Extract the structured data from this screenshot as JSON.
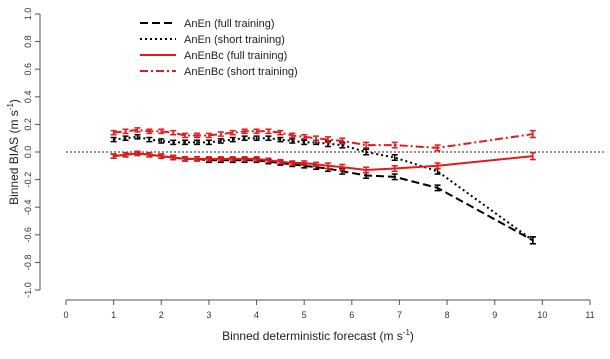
{
  "chart_data": {
    "type": "line",
    "title": "",
    "xlabel": "Binned deterministic forecast (m s",
    "xlabel_sup": "-1",
    "xlabel_tail": ")",
    "ylabel": "Binned BIAS (m s",
    "ylabel_sup": "-1",
    "ylabel_tail": ")",
    "xlim": [
      0,
      11
    ],
    "ylim": [
      -1.0,
      1.0
    ],
    "xticks": [
      0,
      1,
      2,
      3,
      4,
      5,
      6,
      7,
      8,
      9,
      10,
      11
    ],
    "xtick_labels": [
      "0",
      "1",
      "2",
      "3",
      "4",
      "5",
      "6",
      "7",
      "8",
      "9",
      "10",
      "11"
    ],
    "yticks": [
      -1.0,
      -0.8,
      -0.6,
      -0.4,
      -0.2,
      0.0,
      0.2,
      0.4,
      0.6,
      0.8,
      1.0
    ],
    "ytick_labels": [
      "-1.0",
      "-0.8",
      "-0.6",
      "-0.4",
      "-0.2",
      "0.0",
      "0.2",
      "0.4",
      "0.6",
      "0.8",
      "1.0"
    ],
    "reference_line": 0.0,
    "grid": false,
    "legend_position": "top-left",
    "x": [
      1.0,
      1.25,
      1.5,
      1.75,
      2.0,
      2.25,
      2.5,
      2.75,
      3.0,
      3.25,
      3.5,
      3.75,
      4.0,
      4.25,
      4.5,
      4.75,
      5.0,
      5.25,
      5.5,
      5.8,
      6.3,
      6.9,
      7.8,
      9.8
    ],
    "series": [
      {
        "name": "AnEn (full training)",
        "color": "#000000",
        "style": "dashed",
        "values": [
          -0.03,
          -0.02,
          -0.01,
          -0.02,
          -0.03,
          -0.04,
          -0.05,
          -0.05,
          -0.06,
          -0.06,
          -0.06,
          -0.06,
          -0.06,
          -0.07,
          -0.08,
          -0.09,
          -0.1,
          -0.11,
          -0.12,
          -0.14,
          -0.17,
          -0.18,
          -0.26,
          -0.64
        ],
        "errors": [
          0.015,
          0.015,
          0.015,
          0.015,
          0.015,
          0.015,
          0.015,
          0.015,
          0.015,
          0.015,
          0.015,
          0.015,
          0.015,
          0.015,
          0.015,
          0.015,
          0.015,
          0.015,
          0.02,
          0.02,
          0.02,
          0.02,
          0.02,
          0.025
        ]
      },
      {
        "name": "AnEn (short training)",
        "color": "#000000",
        "style": "dotted",
        "values": [
          0.09,
          0.1,
          0.11,
          0.09,
          0.08,
          0.07,
          0.07,
          0.07,
          0.07,
          0.08,
          0.09,
          0.1,
          0.1,
          0.1,
          0.09,
          0.08,
          0.07,
          0.07,
          0.06,
          0.05,
          0.0,
          -0.04,
          -0.14,
          -0.64
        ],
        "errors": [
          0.015,
          0.015,
          0.015,
          0.015,
          0.015,
          0.015,
          0.015,
          0.015,
          0.015,
          0.015,
          0.015,
          0.015,
          0.015,
          0.015,
          0.015,
          0.015,
          0.015,
          0.015,
          0.02,
          0.02,
          0.02,
          0.02,
          0.02,
          0.025
        ]
      },
      {
        "name": "AnEnBc (full training)",
        "color": "#e31a1c",
        "style": "solid",
        "values": [
          -0.03,
          -0.02,
          -0.01,
          -0.02,
          -0.03,
          -0.04,
          -0.05,
          -0.05,
          -0.05,
          -0.05,
          -0.05,
          -0.05,
          -0.05,
          -0.06,
          -0.07,
          -0.08,
          -0.08,
          -0.09,
          -0.1,
          -0.11,
          -0.13,
          -0.12,
          -0.1,
          -0.03
        ],
        "errors": [
          0.015,
          0.015,
          0.015,
          0.015,
          0.015,
          0.015,
          0.015,
          0.015,
          0.015,
          0.015,
          0.015,
          0.015,
          0.015,
          0.015,
          0.015,
          0.015,
          0.015,
          0.015,
          0.02,
          0.02,
          0.02,
          0.02,
          0.02,
          0.025
        ]
      },
      {
        "name": "AnEnBc (short training)",
        "color": "#e31a1c",
        "style": "dashdot",
        "values": [
          0.14,
          0.15,
          0.16,
          0.15,
          0.15,
          0.14,
          0.12,
          0.12,
          0.12,
          0.13,
          0.14,
          0.15,
          0.15,
          0.15,
          0.14,
          0.12,
          0.11,
          0.1,
          0.09,
          0.08,
          0.05,
          0.05,
          0.03,
          0.13
        ],
        "errors": [
          0.015,
          0.015,
          0.015,
          0.015,
          0.015,
          0.015,
          0.015,
          0.015,
          0.015,
          0.015,
          0.015,
          0.015,
          0.015,
          0.015,
          0.015,
          0.015,
          0.015,
          0.015,
          0.02,
          0.02,
          0.02,
          0.02,
          0.02,
          0.025
        ]
      }
    ]
  }
}
